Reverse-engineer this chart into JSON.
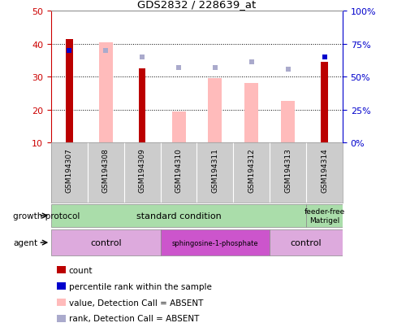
{
  "title": "GDS2832 / 228639_at",
  "samples": [
    "GSM194307",
    "GSM194308",
    "GSM194309",
    "GSM194310",
    "GSM194311",
    "GSM194312",
    "GSM194313",
    "GSM194314"
  ],
  "count_values": [
    41.5,
    null,
    32.5,
    null,
    null,
    null,
    null,
    34.5
  ],
  "count_color": "#bb0000",
  "value_absent": [
    null,
    40.5,
    null,
    19.5,
    29.5,
    28.0,
    22.5,
    null
  ],
  "value_absent_color": "#ffbbbb",
  "rank_present_values": [
    70.0,
    null,
    null,
    null,
    null,
    null,
    null,
    65.0
  ],
  "rank_present_color": "#0000cc",
  "rank_absent_values": [
    null,
    70.0,
    65.0,
    57.0,
    57.0,
    61.0,
    56.0,
    null
  ],
  "rank_absent_color": "#aaaacc",
  "ylim_left": [
    10,
    50
  ],
  "ylim_right": [
    0,
    100
  ],
  "yticks_left": [
    10,
    20,
    30,
    40,
    50
  ],
  "ytick_labels_left": [
    "10",
    "20",
    "30",
    "40",
    "50"
  ],
  "yticks_right": [
    0,
    25,
    50,
    75,
    100
  ],
  "ytick_labels_right": [
    "0%",
    "25%",
    "50%",
    "75%",
    "100%"
  ],
  "growth_protocol_labels": [
    "standard condition",
    "feeder-free\nMatrigel"
  ],
  "growth_protocol_color": "#aaddaa",
  "agent_labels": [
    "control",
    "sphingosine-1-phosphate",
    "control"
  ],
  "agent_color_light": "#ddaadd",
  "agent_color_dark": "#cc55cc",
  "left_axis_color": "#cc0000",
  "right_axis_color": "#0000cc",
  "legend_items": [
    {
      "color": "#bb0000",
      "label": "count",
      "marker": "s"
    },
    {
      "color": "#0000cc",
      "label": "percentile rank within the sample",
      "marker": "s"
    },
    {
      "color": "#ffbbbb",
      "label": "value, Detection Call = ABSENT",
      "marker": "s"
    },
    {
      "color": "#aaaacc",
      "label": "rank, Detection Call = ABSENT",
      "marker": "s"
    }
  ],
  "gsm_bg_color": "#cccccc",
  "background_color": "#ffffff",
  "grid_color": "#000000",
  "grid_linestyle": ":",
  "grid_linewidth": 0.7
}
